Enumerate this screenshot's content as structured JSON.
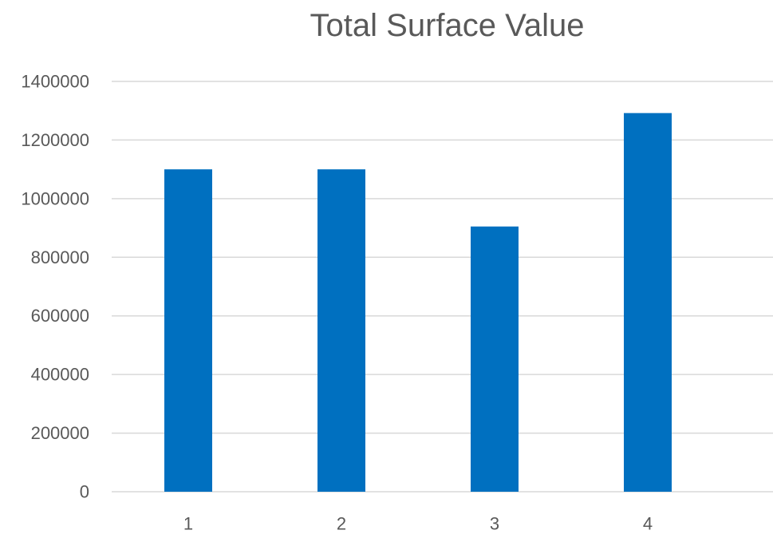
{
  "chart_data": {
    "type": "bar",
    "title": "Total Surface Value",
    "categories": [
      "1",
      "2",
      "3",
      "4"
    ],
    "series": [
      {
        "values": [
          1100000,
          1100000,
          905000,
          1292000
        ],
        "color": "#0070C0"
      }
    ],
    "ylim": [
      0,
      1400000
    ],
    "yticks": [
      0,
      200000,
      400000,
      600000,
      800000,
      1000000,
      1200000,
      1400000
    ],
    "ytick_labels": [
      "0",
      "200000",
      "400000",
      "600000",
      "800000",
      "1000000",
      "1200000",
      "1400000"
    ],
    "xlabel": "",
    "ylabel": "",
    "grid": true,
    "legend": "none"
  }
}
